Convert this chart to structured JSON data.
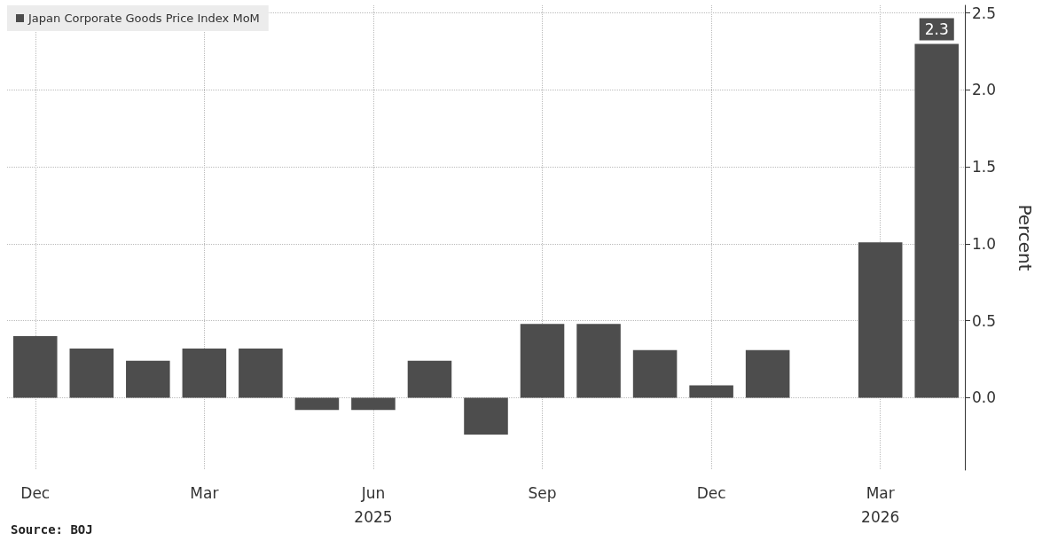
{
  "chart_data": {
    "type": "bar",
    "ylabel": "Percent",
    "categories": [
      "Dec",
      null,
      null,
      "Mar",
      null,
      null,
      "Jun\n2025",
      null,
      null,
      "Sep",
      null,
      null,
      "Dec",
      null,
      null,
      "Mar\n2026",
      null
    ],
    "series": [
      {
        "name": "Japan Corporate Goods Price Index MoM",
        "color": "#4d4d4d",
        "values": [
          0.4,
          0.32,
          0.24,
          0.32,
          0.32,
          -0.08,
          -0.08,
          0.24,
          -0.24,
          0.48,
          0.48,
          0.31,
          0.08,
          0.31,
          0.0,
          1.01,
          2.3
        ],
        "value_labels": [
          null,
          null,
          null,
          null,
          null,
          null,
          null,
          null,
          null,
          null,
          null,
          null,
          null,
          null,
          null,
          null,
          "2.3"
        ]
      }
    ],
    "ylim": [
      -0.47,
      2.55
    ],
    "yticks": [
      {
        "value": 0,
        "label": "0.0"
      },
      {
        "value": 0.5,
        "label": "0.5"
      },
      {
        "value": 1,
        "label": "1.0"
      },
      {
        "value": 1.5,
        "label": "1.5"
      },
      {
        "value": 2,
        "label": "2.0"
      },
      {
        "value": 2.5,
        "label": "2.5"
      }
    ],
    "grid": true,
    "legend": "top left",
    "annotations": [
      "Source: BOJ"
    ]
  }
}
